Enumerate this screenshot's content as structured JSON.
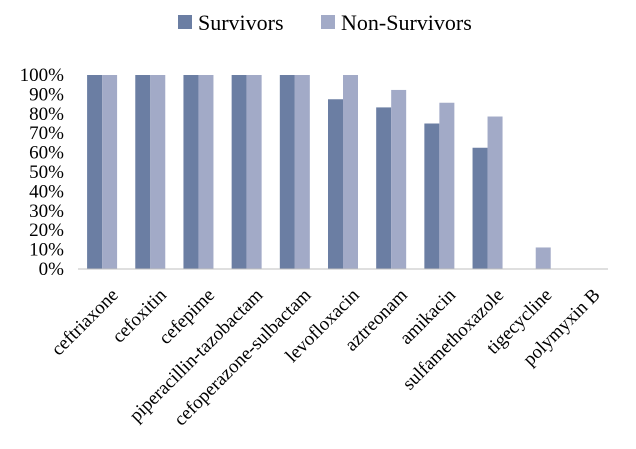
{
  "chart_data": {
    "type": "bar",
    "title": "",
    "xlabel": "",
    "ylabel": "",
    "ylim": [
      0,
      100
    ],
    "y_ticks": [
      "0%",
      "10%",
      "20%",
      "30%",
      "40%",
      "50%",
      "60%",
      "70%",
      "80%",
      "90%",
      "100%"
    ],
    "grid": false,
    "legend_position": "top-center",
    "categories": [
      "ceftriaxone",
      "cefoxitin",
      "cefepime",
      "piperacillin-tazobactam",
      "cefoperazone-sulbactam",
      "levofloxacin",
      "aztreonam",
      "amikacin",
      "sulfamethoxazole",
      "tigecycline",
      "polymyxin B"
    ],
    "series": [
      {
        "name": "Survivors",
        "color": "#6b7ea3",
        "values": [
          100,
          100,
          100,
          100,
          100,
          87.5,
          83.3,
          75,
          62.5,
          0,
          0
        ]
      },
      {
        "name": "Non-Survivors",
        "color": "#a2aac7",
        "values": [
          100,
          100,
          100,
          100,
          100,
          100,
          92.3,
          85.7,
          78.6,
          11.1,
          0
        ]
      }
    ]
  }
}
